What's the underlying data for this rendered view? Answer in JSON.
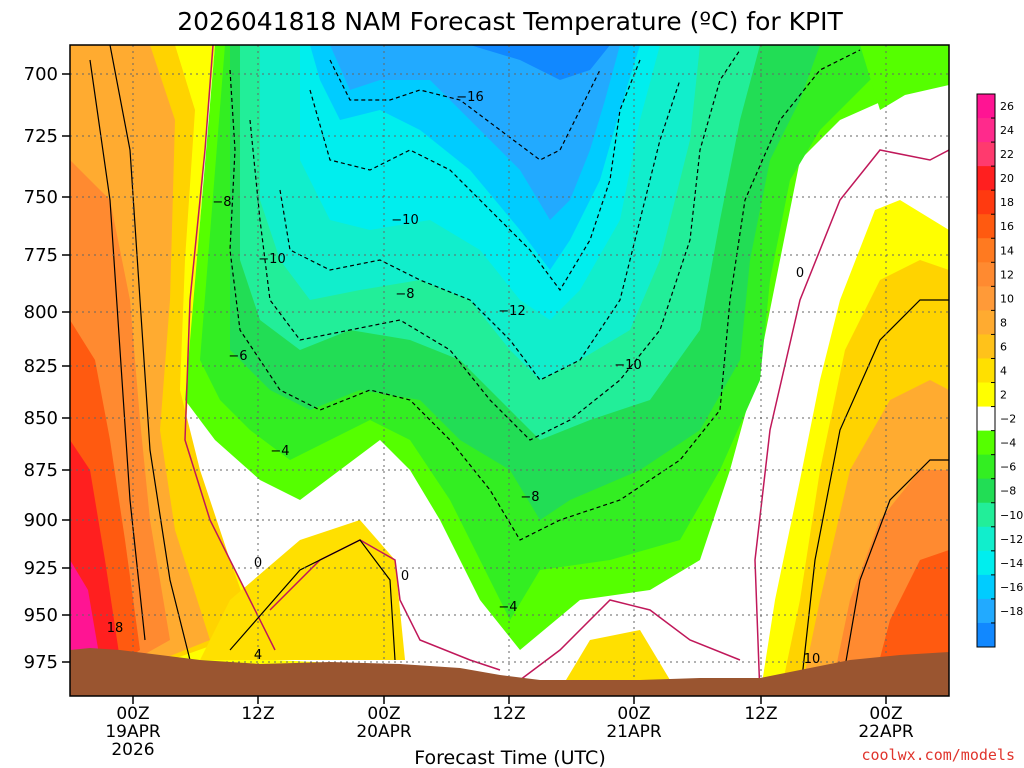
{
  "title": "2026041818 NAM Forecast Temperature (ºC) for KPIT",
  "credit": "coolwx.com/models",
  "colors": {
    "credit": "#e0342c",
    "terrain": "#9a5530",
    "freezing_line": "#c0185a"
  },
  "chart_data": {
    "type": "heatmap",
    "title": "2026041818 NAM Forecast Temperature (ºC) for KPIT",
    "xlabel": "Forecast Time (UTC)",
    "ylabel": "",
    "y_ticks": [
      "700",
      "725",
      "750",
      "775",
      "800",
      "825",
      "850",
      "875",
      "900",
      "925",
      "950",
      "975"
    ],
    "x_ticks": [
      {
        "lines": [
          "00Z",
          "19APR",
          "2026"
        ]
      },
      {
        "lines": [
          "12Z"
        ]
      },
      {
        "lines": [
          "00Z",
          "20APR"
        ]
      },
      {
        "lines": [
          "12Z"
        ]
      },
      {
        "lines": [
          "00Z",
          "21APR"
        ]
      },
      {
        "lines": [
          "12Z"
        ]
      },
      {
        "lines": [
          "00Z",
          "22APR"
        ]
      }
    ],
    "colorbar": {
      "ticks": [
        "26",
        "24",
        "22",
        "20",
        "18",
        "16",
        "14",
        "12",
        "10",
        "8",
        "6",
        "4",
        "2",
        "−2",
        "−4",
        "−6",
        "−8",
        "−10",
        "−12",
        "−14",
        "−16",
        "−18"
      ],
      "colors": [
        "#ff1493",
        "#ff2a8c",
        "#ff3a6e",
        "#ff1f1f",
        "#ff3a10",
        "#ff5a10",
        "#ff7a20",
        "#ff8a30",
        "#ff9a38",
        "#ffab30",
        "#ffc21a",
        "#ffe000",
        "#ffff00",
        "#ffffff",
        "#55ff00",
        "#33ee22",
        "#22dd55",
        "#22ee99",
        "#11eecc",
        "#00eeee",
        "#00ccff",
        "#22aaff",
        "#1188ff"
      ]
    },
    "contour_labels": [
      "−16",
      "−10",
      "−8",
      "−10",
      "−6",
      "−8",
      "−12",
      "−10",
      "−4",
      "−8",
      "−4",
      "0",
      "0",
      "0",
      "4",
      "10",
      "18"
    ],
    "grid": true
  }
}
